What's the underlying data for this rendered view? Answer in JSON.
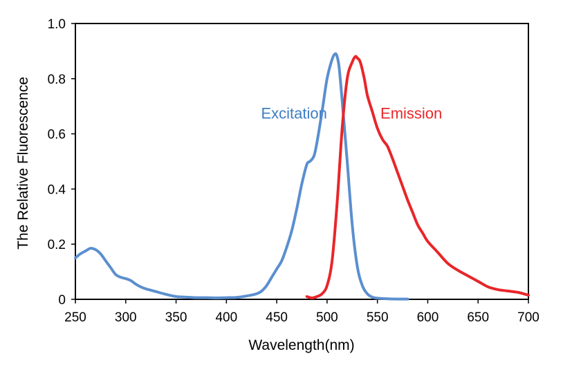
{
  "chart_data": {
    "type": "line",
    "title": "",
    "xlabel": "Wavelength(nm)",
    "ylabel": "The Relative Fluorescence",
    "xlim": [
      250,
      700
    ],
    "ylim": [
      0,
      1.0
    ],
    "x_ticks": [
      250,
      300,
      350,
      400,
      450,
      500,
      550,
      600,
      650,
      700
    ],
    "x_tick_labels": [
      "250",
      "300",
      "350",
      "400",
      "450",
      "500",
      "550",
      "600",
      "650",
      "700"
    ],
    "y_ticks": [
      0,
      0.2,
      0.4,
      0.6,
      0.8,
      1.0
    ],
    "y_tick_labels": [
      "0",
      "0.2",
      "0.4",
      "0.6",
      "0.8",
      "1.0"
    ],
    "grid": false,
    "legend": "none",
    "series": [
      {
        "name": "Excitation",
        "color": "#5B8FCF",
        "x": [
          250,
          255,
          260,
          265,
          270,
          275,
          280,
          285,
          290,
          295,
          300,
          305,
          310,
          315,
          320,
          325,
          330,
          340,
          350,
          360,
          370,
          380,
          390,
          400,
          410,
          420,
          430,
          435,
          440,
          445,
          450,
          455,
          460,
          465,
          470,
          475,
          480,
          483,
          487,
          490,
          495,
          500,
          505,
          508,
          510,
          512,
          515,
          520,
          525,
          530,
          535,
          540,
          545,
          550,
          560,
          570,
          580
        ],
        "values": [
          0.15,
          0.165,
          0.175,
          0.185,
          0.18,
          0.165,
          0.14,
          0.115,
          0.09,
          0.08,
          0.075,
          0.068,
          0.055,
          0.045,
          0.038,
          0.033,
          0.028,
          0.018,
          0.01,
          0.008,
          0.006,
          0.006,
          0.005,
          0.006,
          0.007,
          0.012,
          0.02,
          0.03,
          0.05,
          0.08,
          0.11,
          0.14,
          0.19,
          0.25,
          0.33,
          0.42,
          0.49,
          0.5,
          0.52,
          0.57,
          0.68,
          0.8,
          0.87,
          0.89,
          0.88,
          0.84,
          0.72,
          0.5,
          0.27,
          0.12,
          0.05,
          0.02,
          0.008,
          0.004,
          0.002,
          0.001,
          0.001
        ]
      },
      {
        "name": "Emission",
        "color": "#E8262A",
        "x": [
          480,
          485,
          490,
          495,
          500,
          505,
          510,
          515,
          520,
          525,
          528,
          530,
          533,
          537,
          540,
          545,
          550,
          555,
          560,
          565,
          570,
          575,
          580,
          585,
          590,
          595,
          600,
          610,
          620,
          630,
          640,
          650,
          660,
          670,
          680,
          690,
          700
        ],
        "values": [
          0.01,
          0.005,
          0.01,
          0.02,
          0.05,
          0.14,
          0.35,
          0.62,
          0.8,
          0.86,
          0.88,
          0.875,
          0.86,
          0.8,
          0.74,
          0.68,
          0.62,
          0.58,
          0.555,
          0.51,
          0.46,
          0.41,
          0.36,
          0.315,
          0.27,
          0.24,
          0.21,
          0.17,
          0.13,
          0.105,
          0.085,
          0.065,
          0.045,
          0.035,
          0.03,
          0.025,
          0.015
        ]
      }
    ],
    "annotations": [
      {
        "text": "Excitation",
        "series": "Excitation",
        "color": "#3E7DC4",
        "x": 500,
        "y": 0.655
      },
      {
        "text": "Emission",
        "series": "Emission",
        "color": "#E8262A",
        "x": 553,
        "y": 0.655
      }
    ]
  }
}
